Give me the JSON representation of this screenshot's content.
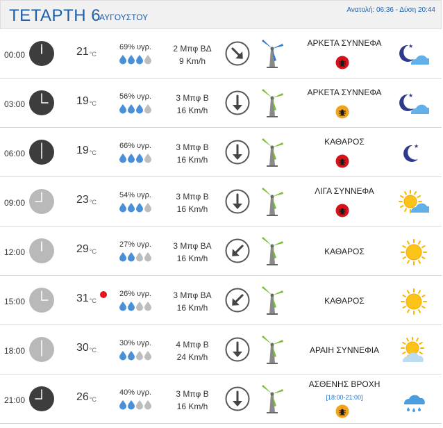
{
  "header": {
    "day": "ΤΕΤΑΡΤΗ 6",
    "month": "ΑΥΓΟΥΣΤΟΥ",
    "sun": "Ανατολή: 06:36  - Δύση 20:44"
  },
  "rows": [
    {
      "time": "00:00",
      "temp": "21",
      "unit": "°C",
      "humidity": "69% υγρ.",
      "drops_filled": 3,
      "wind_force": "2 Μπφ ΒΔ",
      "wind_speed": "9 Km/h",
      "wind_dir": "ΒΔ",
      "condition": "ΑΡΚΕΤΑ ΣΥΝΝΕΦΑ",
      "period": "",
      "badge": "red",
      "icon": "moon-cloud-icon",
      "clock": "dark",
      "hot": false
    },
    {
      "time": "03:00",
      "temp": "19",
      "unit": "°C",
      "humidity": "56% υγρ.",
      "drops_filled": 3,
      "wind_force": "3 Μπφ Β",
      "wind_speed": "16 Km/h",
      "wind_dir": "Β",
      "condition": "ΑΡΚΕΤΑ ΣΥΝΝΕΦΑ",
      "period": "",
      "badge": "orange",
      "icon": "moon-cloud-icon",
      "clock": "dark",
      "hot": false
    },
    {
      "time": "06:00",
      "temp": "19",
      "unit": "°C",
      "humidity": "66% υγρ.",
      "drops_filled": 3,
      "wind_force": "3 Μπφ Β",
      "wind_speed": "16 Km/h",
      "wind_dir": "Β",
      "condition": "ΚΑΘΑΡΟΣ",
      "period": "",
      "badge": "red",
      "icon": "moon-icon",
      "clock": "dark",
      "hot": false
    },
    {
      "time": "09:00",
      "temp": "23",
      "unit": "°C",
      "humidity": "54% υγρ.",
      "drops_filled": 3,
      "wind_force": "3 Μπφ Β",
      "wind_speed": "16 Km/h",
      "wind_dir": "Β",
      "condition": "ΛΙΓΑ ΣΥΝΝΕΦΑ",
      "period": "",
      "badge": "red",
      "icon": "sun-cloud-icon",
      "clock": "light",
      "hot": false
    },
    {
      "time": "12:00",
      "temp": "29",
      "unit": "°C",
      "humidity": "27% υγρ.",
      "drops_filled": 2,
      "wind_force": "3 Μπφ ΒΑ",
      "wind_speed": "16 Km/h",
      "wind_dir": "ΒΑ",
      "condition": "ΚΑΘΑΡΟΣ",
      "period": "",
      "badge": "",
      "icon": "sun-icon",
      "clock": "light",
      "hot": false
    },
    {
      "time": "15:00",
      "temp": "31",
      "unit": "°C",
      "humidity": "26% υγρ.",
      "drops_filled": 2,
      "wind_force": "3 Μπφ ΒΑ",
      "wind_speed": "16 Km/h",
      "wind_dir": "ΒΑ",
      "condition": "ΚΑΘΑΡΟΣ",
      "period": "",
      "badge": "",
      "icon": "sun-icon",
      "clock": "light",
      "hot": true
    },
    {
      "time": "18:00",
      "temp": "30",
      "unit": "°C",
      "humidity": "30% υγρ.",
      "drops_filled": 2,
      "wind_force": "4 Μπφ Β",
      "wind_speed": "24 Km/h",
      "wind_dir": "Β",
      "condition": "ΑΡΑΙΗ ΣΥΝΝΕΦΙΑ",
      "period": "",
      "badge": "",
      "icon": "sun-cloud-pale-icon",
      "clock": "light",
      "hot": false
    },
    {
      "time": "21:00",
      "temp": "26",
      "unit": "°C",
      "humidity": "40% υγρ.",
      "drops_filled": 2,
      "wind_force": "3 Μπφ Β",
      "wind_speed": "16 Km/h",
      "wind_dir": "Β",
      "condition": "ΑΣΘΕΝΗΣ ΒΡΟΧΗ",
      "period": "[18:00-21:00]",
      "badge": "orange",
      "icon": "rain-cloud-icon",
      "clock": "dark",
      "hot": false
    }
  ]
}
